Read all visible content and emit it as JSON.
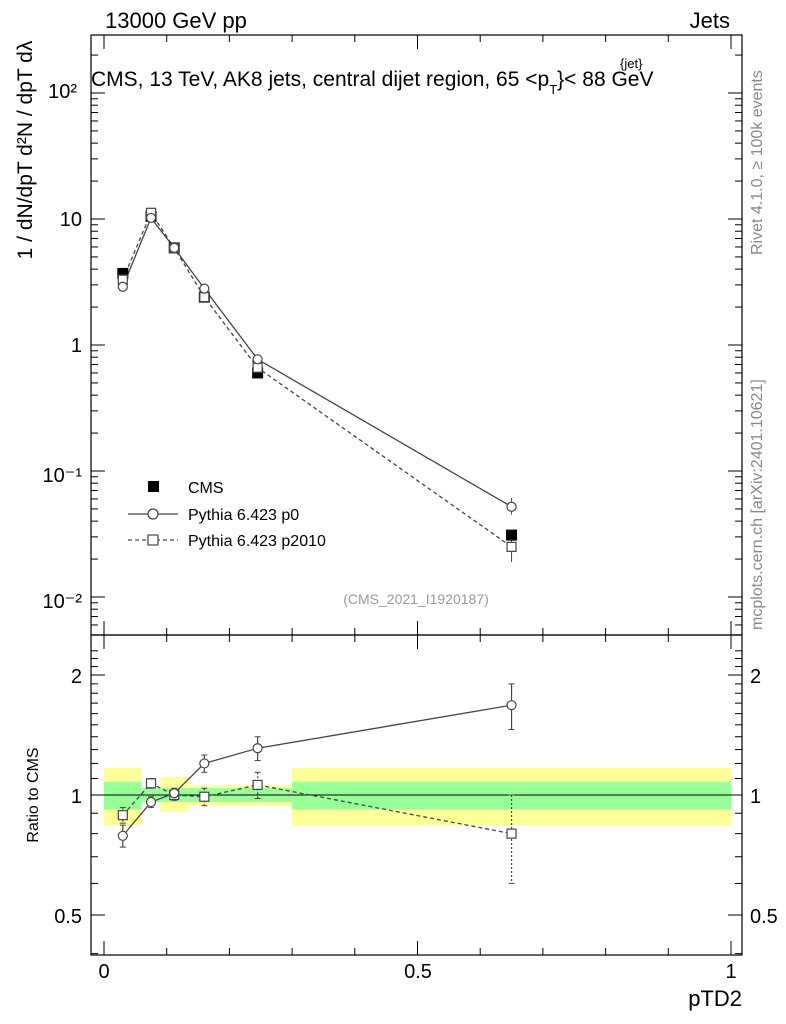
{
  "header": {
    "left": "13000 GeV pp",
    "right": "Jets"
  },
  "title": {
    "main": "CMS, 13 TeV, AK8 jets, central dijet region, 65 <p",
    "sup": "{jet}",
    "sub": "T",
    "tail": "}< 88 GeV"
  },
  "ylabel_top": "1 / dN/dpT d²N / dpT dλ",
  "ylabel_bottom": "Ratio to CMS",
  "xlabel": "pTD2",
  "side_labels": {
    "rivet": "Rivet 4.1.0, ≥ 100k events",
    "mcplots": "mcplots.cern.ch [arXiv:2401.10621]"
  },
  "analysis_id": "(CMS_2021_I1920187)",
  "legend": [
    {
      "label": "CMS",
      "marker": "filled-square"
    },
    {
      "label": "Pythia 6.423 p0",
      "marker": "open-circle",
      "line": "solid"
    },
    {
      "label": "Pythia 6.423 p2010",
      "marker": "open-square",
      "line": "dashed"
    }
  ],
  "top_ticks": {
    "t100": "10²",
    "t10": "10",
    "t1": "1",
    "t01": "10⁻¹",
    "t001": "10⁻²"
  },
  "ratio_ticks": {
    "r2": "2",
    "r1": "1",
    "r05": "0.5",
    "r2b": "2",
    "r1b": "1",
    "r05b": "0.5"
  },
  "x_ticks": {
    "x0": "0",
    "x05": "0.5",
    "x1": "1"
  },
  "chart_data": {
    "type": "scatter",
    "x_range": [
      0,
      1
    ],
    "y_range_top": [
      0.007,
      300
    ],
    "y_scale_top": "log",
    "y_range_ratio": [
      0.4,
      2.35
    ],
    "bin_edges": [
      0,
      0.06,
      0.09,
      0.135,
      0.18,
      0.3,
      1.0
    ],
    "series": [
      {
        "name": "CMS",
        "x": [
          0.03,
          0.075,
          0.112,
          0.16,
          0.245,
          0.65
        ],
        "y": [
          3.7,
          10.5,
          5.9,
          2.4,
          0.6,
          0.031
        ],
        "ratio_band_stat": [
          0.92,
          0.96,
          0.96,
          0.96,
          0.96,
          0.92
        ],
        "ratio_band_stat_hi": [
          1.08,
          1.04,
          1.04,
          1.04,
          1.04,
          1.08
        ],
        "ratio_band_tot_lo": [
          0.84,
          0.97,
          0.91,
          0.94,
          0.94,
          0.84
        ],
        "ratio_band_tot_hi": [
          1.17,
          1.03,
          1.11,
          1.06,
          1.06,
          1.17
        ]
      },
      {
        "name": "Pythia 6.423 p0",
        "x": [
          0.03,
          0.075,
          0.112,
          0.16,
          0.245,
          0.65
        ],
        "y": [
          2.9,
          10.2,
          5.9,
          2.8,
          0.77,
          0.052
        ],
        "ratio": [
          0.79,
          0.96,
          1.01,
          1.2,
          1.31,
          1.68
        ],
        "ratio_err": [
          0.05,
          0.03,
          0.03,
          0.06,
          0.09,
          0.22
        ]
      },
      {
        "name": "Pythia 6.423 p2010",
        "x": [
          0.03,
          0.075,
          0.112,
          0.16,
          0.245,
          0.65
        ],
        "y": [
          3.3,
          11.2,
          5.9,
          2.4,
          0.66,
          0.025
        ],
        "ratio": [
          0.89,
          1.07,
          1.0,
          0.99,
          1.06,
          0.8
        ],
        "ratio_err": [
          0.04,
          0.03,
          0.03,
          0.05,
          0.08,
          0.2
        ]
      }
    ]
  }
}
